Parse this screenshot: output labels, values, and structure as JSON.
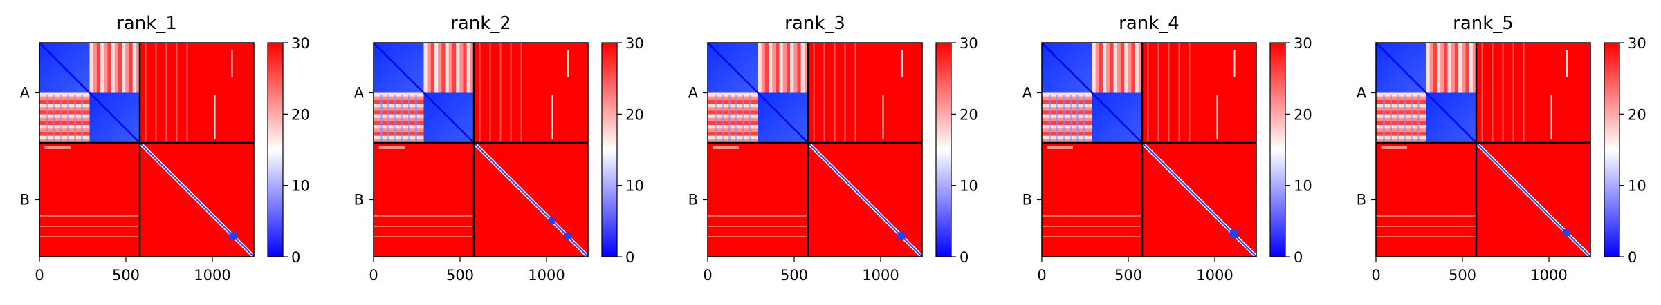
{
  "chart_data": [
    {
      "type": "heatmap",
      "title": "rank_1",
      "xlim": [
        0,
        1240
      ],
      "ylim": [
        1240,
        0
      ],
      "x_ticks": [
        0,
        500,
        1000
      ],
      "chain_boundary": 580,
      "chains": [
        {
          "label": "A",
          "start": 0,
          "end": 580
        },
        {
          "label": "B",
          "start": 580,
          "end": 1240
        }
      ],
      "subdomain_boundary_A": 290,
      "colorbar": {
        "min": 0,
        "max": 30,
        "ticks": [
          0,
          10,
          20,
          30
        ],
        "colors": [
          "#0000ff",
          "#ffffff",
          "#ff0000"
        ]
      },
      "bright_features": [
        {
          "x": 1010,
          "width": 8,
          "y0": 300,
          "y1": 560
        },
        {
          "x": 1110,
          "width": 8,
          "y0": 40,
          "y1": 200
        }
      ],
      "dark_blocks": [
        {
          "center": 1120,
          "size": 45
        }
      ]
    },
    {
      "type": "heatmap",
      "title": "rank_2",
      "xlim": [
        0,
        1240
      ],
      "ylim": [
        1240,
        0
      ],
      "x_ticks": [
        0,
        500,
        1000
      ],
      "chain_boundary": 580,
      "chains": [
        {
          "label": "A",
          "start": 0,
          "end": 580
        },
        {
          "label": "B",
          "start": 580,
          "end": 1240
        }
      ],
      "subdomain_boundary_A": 290,
      "colorbar": {
        "min": 0,
        "max": 30,
        "ticks": [
          0,
          10,
          20,
          30
        ],
        "colors": [
          "#0000ff",
          "#ffffff",
          "#ff0000"
        ]
      },
      "bright_features": [
        {
          "x": 1030,
          "width": 8,
          "y0": 300,
          "y1": 560
        },
        {
          "x": 1120,
          "width": 8,
          "y0": 40,
          "y1": 200
        }
      ],
      "dark_blocks": [
        {
          "center": 1030,
          "size": 35
        },
        {
          "center": 1120,
          "size": 40
        }
      ]
    },
    {
      "type": "heatmap",
      "title": "rank_3",
      "xlim": [
        0,
        1240
      ],
      "ylim": [
        1240,
        0
      ],
      "x_ticks": [
        0,
        500,
        1000
      ],
      "chain_boundary": 580,
      "chains": [
        {
          "label": "A",
          "start": 0,
          "end": 580
        },
        {
          "label": "B",
          "start": 580,
          "end": 1240
        }
      ],
      "subdomain_boundary_A": 290,
      "colorbar": {
        "min": 0,
        "max": 30,
        "ticks": [
          0,
          10,
          20,
          30
        ],
        "colors": [
          "#0000ff",
          "#ffffff",
          "#ff0000"
        ]
      },
      "bright_features": [
        {
          "x": 1010,
          "width": 8,
          "y0": 300,
          "y1": 560
        },
        {
          "x": 1120,
          "width": 8,
          "y0": 40,
          "y1": 200
        }
      ],
      "dark_blocks": [
        {
          "center": 1120,
          "size": 45
        }
      ]
    },
    {
      "type": "heatmap",
      "title": "rank_4",
      "xlim": [
        0,
        1240
      ],
      "ylim": [
        1240,
        0
      ],
      "x_ticks": [
        0,
        500,
        1000
      ],
      "chain_boundary": 580,
      "chains": [
        {
          "label": "A",
          "start": 0,
          "end": 580
        },
        {
          "label": "B",
          "start": 580,
          "end": 1240
        }
      ],
      "subdomain_boundary_A": 290,
      "colorbar": {
        "min": 0,
        "max": 30,
        "ticks": [
          0,
          10,
          20,
          30
        ],
        "colors": [
          "#0000ff",
          "#ffffff",
          "#ff0000"
        ]
      },
      "bright_features": [
        {
          "x": 1010,
          "width": 8,
          "y0": 300,
          "y1": 560
        },
        {
          "x": 1110,
          "width": 8,
          "y0": 40,
          "y1": 200
        }
      ],
      "dark_blocks": [
        {
          "center": 1110,
          "size": 45
        }
      ]
    },
    {
      "type": "heatmap",
      "title": "rank_5",
      "xlim": [
        0,
        1240
      ],
      "ylim": [
        1240,
        0
      ],
      "x_ticks": [
        0,
        500,
        1000
      ],
      "chain_boundary": 580,
      "chains": [
        {
          "label": "A",
          "start": 0,
          "end": 580
        },
        {
          "label": "B",
          "start": 580,
          "end": 1240
        }
      ],
      "subdomain_boundary_A": 290,
      "colorbar": {
        "min": 0,
        "max": 30,
        "ticks": [
          0,
          10,
          20,
          30
        ],
        "colors": [
          "#0000ff",
          "#ffffff",
          "#ff0000"
        ]
      },
      "bright_features": [
        {
          "x": 1010,
          "width": 8,
          "y0": 300,
          "y1": 560
        },
        {
          "x": 1100,
          "width": 8,
          "y0": 40,
          "y1": 200
        }
      ],
      "dark_blocks": [
        {
          "center": 1100,
          "size": 40
        }
      ]
    }
  ]
}
